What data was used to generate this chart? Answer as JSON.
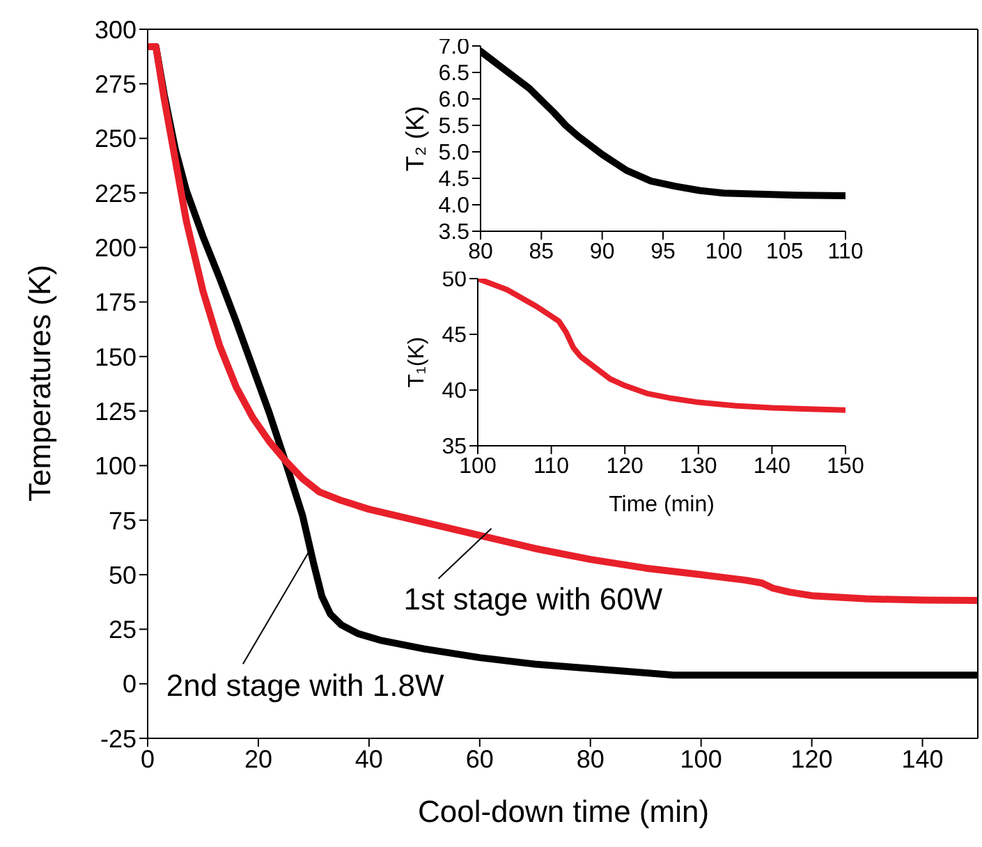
{
  "chart_data": [
    {
      "type": "line",
      "xlabel": "Cool-down time (min)",
      "ylabel": "Temperatures (K)",
      "xlim": [
        0,
        150
      ],
      "xticks": [
        0,
        20,
        40,
        60,
        80,
        100,
        120,
        140
      ],
      "ylim": [
        -25,
        300
      ],
      "yticks": [
        -25,
        0,
        25,
        50,
        75,
        100,
        125,
        150,
        175,
        200,
        225,
        250,
        275,
        300
      ],
      "grid": false,
      "legend": false,
      "marker": "none",
      "line_style": "solid",
      "series": [
        {
          "color": "#000000",
          "x": [
            0,
            1.5,
            3,
            5,
            7,
            10,
            13,
            16,
            19,
            22,
            25,
            28,
            30,
            31.5,
            33,
            35,
            38,
            42,
            50,
            60,
            70,
            80,
            90,
            95,
            100,
            110,
            150
          ],
          "values": [
            292,
            292,
            270,
            245,
            226,
            205,
            186,
            166,
            145,
            124,
            101,
            77,
            55,
            40,
            32,
            27,
            23,
            20,
            16,
            12,
            9,
            7,
            5,
            4,
            4,
            4,
            4
          ]
        },
        {
          "color": "#e8202a",
          "x": [
            0,
            1.5,
            3,
            5,
            7,
            10,
            13,
            16,
            19,
            22,
            25,
            28,
            31,
            35,
            40,
            50,
            60,
            70,
            80,
            90,
            100,
            108,
            111,
            113,
            116,
            120,
            130,
            140,
            150
          ],
          "values": [
            292,
            292,
            268,
            240,
            212,
            180,
            155,
            136,
            122,
            111,
            102,
            94,
            88,
            84,
            80,
            74,
            68,
            62,
            57,
            53,
            50,
            47.5,
            46.2,
            43.8,
            42,
            40.4,
            38.9,
            38.4,
            38.2
          ]
        }
      ],
      "annotations": [
        {
          "text": "2nd stage with 1.8W",
          "x": 29,
          "y": 60
        },
        {
          "text": "1st stage with 60W",
          "x": 62,
          "y": 71
        }
      ]
    },
    {
      "type": "line",
      "ylabel": "T₂ (K)",
      "xlim": [
        80,
        110
      ],
      "xticks": [
        80,
        85,
        90,
        95,
        100,
        105,
        110
      ],
      "ylim": [
        3.5,
        7.0
      ],
      "yticks": [
        {
          "value": 3.5,
          "label": "3.5"
        },
        {
          "value": 4,
          "label": "4.0"
        },
        {
          "value": 4.5,
          "label": "4.5"
        },
        {
          "value": 5,
          "label": "5.0"
        },
        {
          "value": 5.5,
          "label": "5.5"
        },
        {
          "value": 6,
          "label": "6.0"
        },
        {
          "value": 6.5,
          "label": "6.5"
        },
        {
          "value": 7,
          "label": "7.0"
        }
      ],
      "grid": false,
      "legend": false,
      "marker": "none",
      "line_style": "solid",
      "series": [
        {
          "color": "#000000",
          "x": [
            80,
            82,
            84,
            86,
            87,
            88,
            90,
            92,
            94,
            96,
            98,
            100,
            103,
            106,
            110
          ],
          "values": [
            6.9,
            6.55,
            6.2,
            5.75,
            5.5,
            5.3,
            4.95,
            4.65,
            4.45,
            4.35,
            4.27,
            4.22,
            4.2,
            4.18,
            4.17
          ]
        }
      ]
    },
    {
      "type": "line",
      "xlabel": "Time (min)",
      "ylabel": "T₁(K)",
      "xlim": [
        100,
        150
      ],
      "xticks": [
        100,
        110,
        120,
        130,
        140,
        150
      ],
      "ylim": [
        35,
        50
      ],
      "yticks": [
        35,
        40,
        45,
        50
      ],
      "grid": false,
      "legend": false,
      "marker": "none",
      "line_style": "solid",
      "series": [
        {
          "color": "#e8202a",
          "x": [
            100,
            104,
            108,
            111,
            112,
            113,
            114,
            116,
            118,
            120,
            123,
            126,
            130,
            135,
            140,
            145,
            150
          ],
          "values": [
            50,
            49,
            47.5,
            46.2,
            45.2,
            43.8,
            43,
            42,
            41,
            40.4,
            39.7,
            39.3,
            38.9,
            38.6,
            38.4,
            38.3,
            38.2
          ]
        }
      ]
    }
  ]
}
